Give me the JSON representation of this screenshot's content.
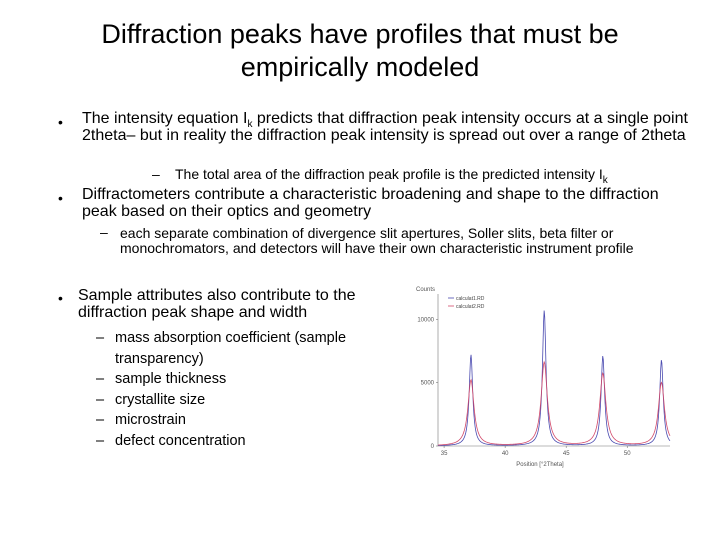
{
  "slide": {
    "title": "Diffraction peaks have profiles that must be empirically modeled",
    "bullet1": {
      "text_before": "The intensity equation I",
      "subscript": "k",
      "text_after": " predicts that diffraction peak intensity occurs at a single point 2theta– but in reality the diffraction peak intensity is spread out over a range of 2theta",
      "sub": {
        "text": "The total area of the diffraction peak profile is the predicted intensity I",
        "subscript": "k"
      }
    },
    "bullet2": {
      "text": "Diffractometers contribute a characteristic broadening and shape to the diffraction peak based on their optics and geometry",
      "sub": "each separate combination of divergence slit apertures, Soller slits, beta filter or monochromators, and detectors will have their own characteristic instrument profile"
    },
    "bullet3": {
      "text": "Sample attributes also contribute to the diffraction peak shape and width",
      "items": [
        "mass absorption coefficient (sample transparency)",
        "sample thickness",
        "crystallite size",
        "microstrain",
        "defect concentration"
      ]
    },
    "bullet_symbol": "•",
    "dash_symbol": "–"
  },
  "chart_data": {
    "type": "line",
    "ylabel": "Counts",
    "xlabel": "Position [°2Theta]",
    "xlim": [
      34.5,
      53.5
    ],
    "ylim": [
      0,
      12000
    ],
    "x_ticks": [
      35,
      40,
      45,
      50
    ],
    "y_ticks": [
      0,
      5000,
      10000
    ],
    "series": [
      {
        "name": "calculat1.RD",
        "color": "#4a4ab0",
        "peaks": [
          {
            "x": 37.2,
            "y": 7200
          },
          {
            "x": 43.2,
            "y": 10700
          },
          {
            "x": 48.0,
            "y": 7100
          },
          {
            "x": 52.8,
            "y": 6800
          }
        ],
        "fwhm": 0.35
      },
      {
        "name": "calculat2.RD",
        "color": "#d24a6a",
        "peaks": [
          {
            "x": 37.2,
            "y": 5200
          },
          {
            "x": 43.2,
            "y": 6600
          },
          {
            "x": 48.0,
            "y": 5700
          },
          {
            "x": 52.8,
            "y": 5000
          }
        ],
        "fwhm": 0.6
      }
    ]
  }
}
